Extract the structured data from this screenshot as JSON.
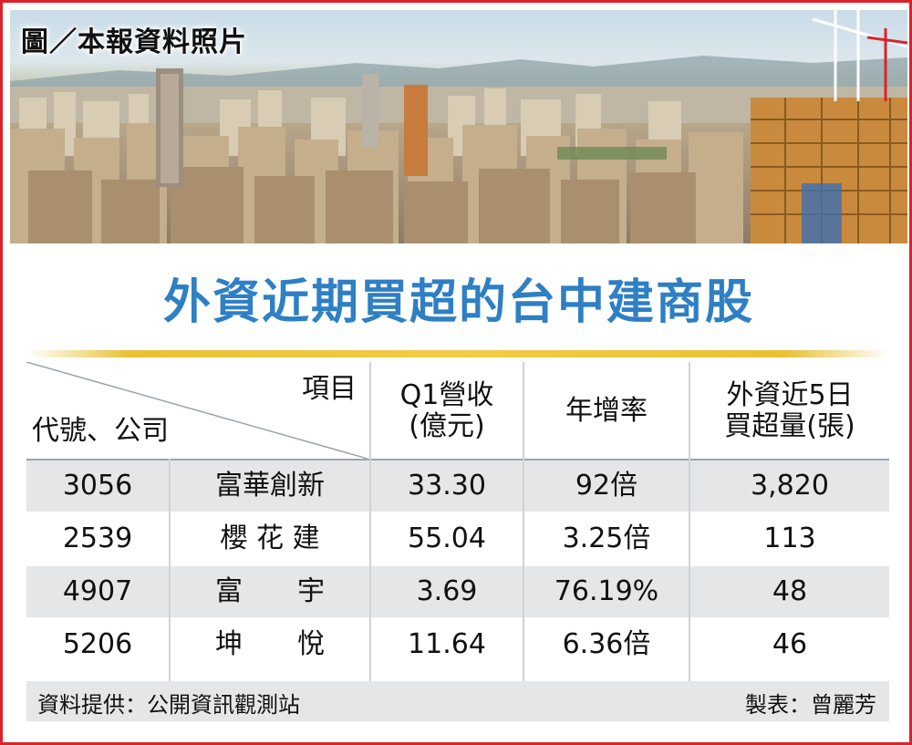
{
  "photo": {
    "credit": "圖／本報資料照片"
  },
  "title": "外資近期買超的台中建商股",
  "table": {
    "header": {
      "item_label": "項目",
      "code_company_label": "代號、公司",
      "q1_revenue": [
        "Q1營收",
        "(億元)"
      ],
      "yoy": "年增率",
      "foreign_buy": [
        "外資近5日",
        "買超量(張)"
      ]
    },
    "rows": [
      {
        "code": "3056",
        "company": "富華創新",
        "revenue": "33.30",
        "yoy": "92倍",
        "net_buy": "3,820"
      },
      {
        "code": "2539",
        "company": "櫻 花 建",
        "revenue": "55.04",
        "yoy": "3.25倍",
        "net_buy": "113"
      },
      {
        "code": "4907",
        "company": "富　　宇",
        "revenue": "3.69",
        "yoy": "76.19%",
        "net_buy": "48"
      },
      {
        "code": "5206",
        "company": "坤　　悅",
        "revenue": "11.64",
        "yoy": "6.36倍",
        "net_buy": "46"
      }
    ]
  },
  "footer": {
    "source": "資料提供：公開資訊觀測站",
    "maker": "製表：曾麗芳"
  },
  "colors": {
    "border": "#d8232a",
    "title": "#2e7fc4",
    "rule": "#e8c135",
    "row_shade": "#e4e6e8"
  }
}
